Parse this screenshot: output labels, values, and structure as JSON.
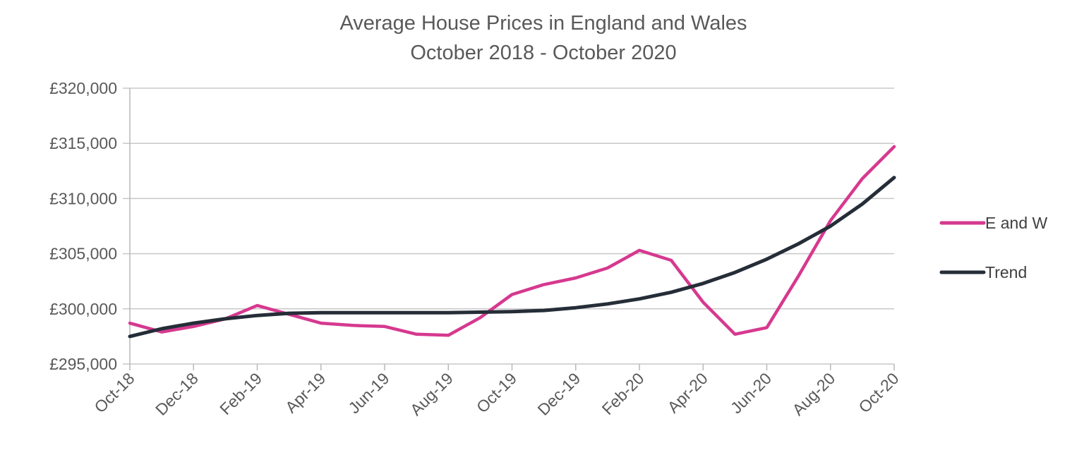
{
  "chart_data": {
    "type": "line",
    "title": "Average House Prices in England and Wales",
    "subtitle": "October 2018 - October 2020",
    "xlabel": "",
    "ylabel": "",
    "x": [
      "Oct-18",
      "Nov-18",
      "Dec-18",
      "Jan-19",
      "Feb-19",
      "Mar-19",
      "Apr-19",
      "May-19",
      "Jun-19",
      "Jul-19",
      "Aug-19",
      "Sep-19",
      "Oct-19",
      "Nov-19",
      "Dec-19",
      "Jan-20",
      "Feb-20",
      "Mar-20",
      "Apr-20",
      "May-20",
      "Jun-20",
      "Jul-20",
      "Aug-20",
      "Sep-20",
      "Oct-20"
    ],
    "tick_labels": [
      "Oct-18",
      "Dec-18",
      "Feb-19",
      "Apr-19",
      "Jun-19",
      "Aug-19",
      "Oct-19",
      "Dec-19",
      "Feb-20",
      "Apr-20",
      "Jun-20",
      "Aug-20",
      "Oct-20"
    ],
    "y_ticks": [
      "£295,000",
      "£300,000",
      "£305,000",
      "£310,000",
      "£315,000",
      "£320,000"
    ],
    "ylim": [
      295000,
      320000
    ],
    "grid": true,
    "legend_position": "right",
    "series": [
      {
        "name": "E and W",
        "color": "#d6398f",
        "values": [
          298700,
          297900,
          298400,
          299100,
          300300,
          299500,
          298700,
          298500,
          298400,
          297700,
          297600,
          299200,
          301300,
          302200,
          302800,
          303700,
          305300,
          304400,
          300600,
          297700,
          298300,
          303000,
          308000,
          311800,
          314700
        ]
      },
      {
        "name": "Trend",
        "color": "#252d38",
        "values": [
          297500,
          298200,
          298700,
          299100,
          299400,
          299600,
          299650,
          299650,
          299650,
          299650,
          299650,
          299700,
          299750,
          299850,
          300100,
          300450,
          300900,
          301500,
          302300,
          303300,
          304500,
          305900,
          307500,
          309500,
          311900
        ]
      }
    ]
  }
}
